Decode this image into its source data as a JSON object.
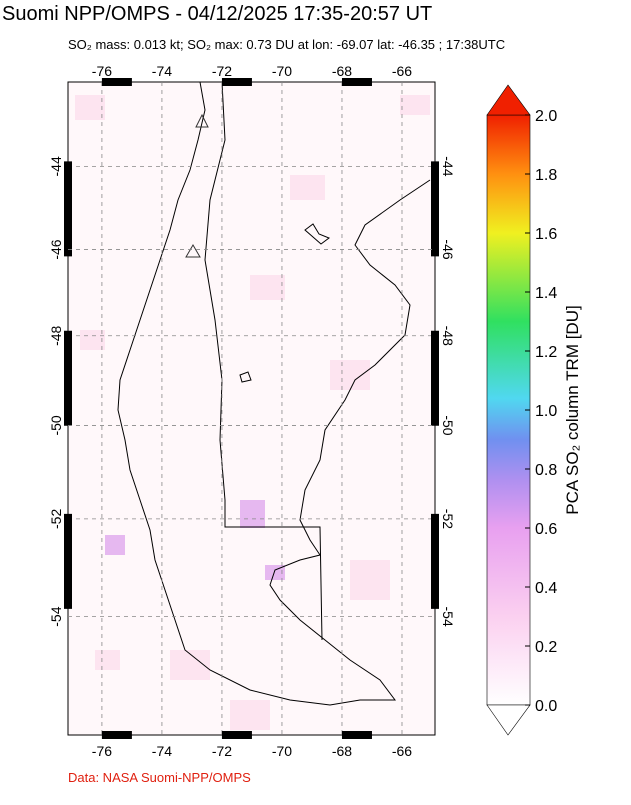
{
  "title": "Suomi NPP/OMPS - 04/12/2025 17:35-20:57 UT",
  "subtitle": "SO₂ mass: 0.013 kt; SO₂ max: 0.73 DU at lon: -69.07 lat: -46.35 ; 17:38UTC",
  "credit": "Data: NASA Suomi-NPP/OMPS",
  "map": {
    "projection": "mercator",
    "xlim": [
      -77.13,
      -64.9
    ],
    "ylim": [
      -56.3,
      -41.9
    ],
    "xticks": [
      -76,
      -74,
      -72,
      -70,
      -68,
      -66
    ],
    "yticks": [
      -44,
      -46,
      -48,
      -50,
      -52,
      -54
    ],
    "grid": true
  },
  "colorbar": {
    "label": "PCA SO₂ column TRM [DU]",
    "lim": [
      0,
      2
    ],
    "ticks": [
      {
        "value": 0,
        "label": "0.0"
      },
      0.2,
      0.4,
      0.6,
      0.8,
      {
        "value": 1,
        "label": "1.0"
      },
      1.2,
      1.4,
      1.6,
      1.8,
      {
        "value": 2,
        "label": "2.0"
      }
    ]
  }
}
